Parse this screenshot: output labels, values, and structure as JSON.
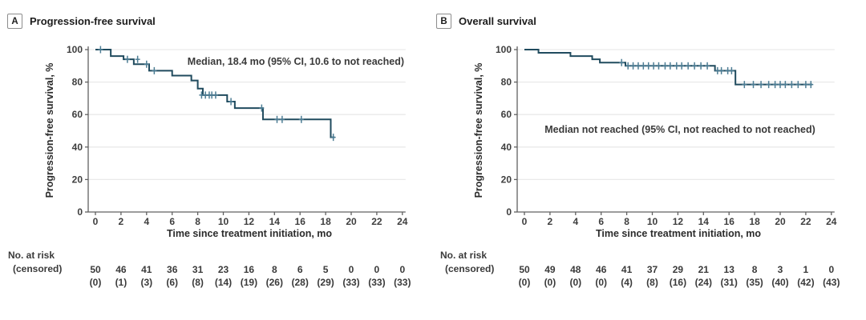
{
  "figure": {
    "panels": [
      {
        "label": "A",
        "title": "Progression-free survival",
        "median_annotation": "Median, 18.4 mo (95% CI, 10.6 to not reached)",
        "x_label": "Time since treatment initiation, mo",
        "y_label": "Progression-free survival, %",
        "risk_header_line1": "No. at risk",
        "risk_header_line2": "(censored)"
      },
      {
        "label": "B",
        "title": "Overall survival",
        "median_annotation": "Median not reached (95% CI, not reached to not reached)",
        "x_label": "Time since treatment initiation, mo",
        "y_label": "Progression-free survival, %",
        "risk_header_line1": "No. at risk",
        "risk_header_line2": "(censored)"
      }
    ]
  },
  "colors": {
    "curve": "#204b5e",
    "censor_mark": "#4d7d94",
    "gridline": "#e9e9e9",
    "axis": "#606060",
    "tick_text": "#3e3e3e",
    "risk_text": "#3a3a3a",
    "title_text": "#1c1c1c"
  },
  "chart_data": [
    {
      "type": "line",
      "subtype": "kaplan-meier-step",
      "panel": "A",
      "title": "Progression-free survival",
      "xlabel": "Time since treatment initiation, mo",
      "ylabel": "Progression-free survival, %",
      "xlim": [
        0,
        24
      ],
      "ylim": [
        0,
        100
      ],
      "xticks": [
        0,
        2,
        4,
        6,
        8,
        10,
        12,
        14,
        16,
        18,
        20,
        22,
        24
      ],
      "yticks": [
        0,
        20,
        40,
        60,
        80,
        100
      ],
      "grid": true,
      "annotation": "Median, 18.4 mo (95% CI, 10.6 to not reached)",
      "median_months": 18.4,
      "median_ci": "10.6 to not reached",
      "steps": [
        [
          0,
          100
        ],
        [
          1.2,
          96
        ],
        [
          2.2,
          94
        ],
        [
          3.0,
          91
        ],
        [
          4.2,
          87
        ],
        [
          6.0,
          84
        ],
        [
          7.5,
          81
        ],
        [
          8.0,
          76
        ],
        [
          8.4,
          72
        ],
        [
          10.3,
          68
        ],
        [
          10.9,
          64
        ],
        [
          13.1,
          57
        ],
        [
          18.4,
          46
        ]
      ],
      "curve_end": 18.7,
      "censor_marks": [
        [
          0.4,
          100
        ],
        [
          2.5,
          94
        ],
        [
          3.3,
          94
        ],
        [
          4.0,
          91
        ],
        [
          4.6,
          87
        ],
        [
          8.3,
          72
        ],
        [
          8.6,
          72
        ],
        [
          8.9,
          72
        ],
        [
          9.1,
          72
        ],
        [
          9.4,
          72
        ],
        [
          10.6,
          68
        ],
        [
          13.0,
          64
        ],
        [
          14.2,
          57
        ],
        [
          14.6,
          57
        ],
        [
          16.1,
          57
        ],
        [
          18.6,
          46
        ]
      ],
      "at_risk": [
        50,
        46,
        41,
        36,
        31,
        23,
        16,
        8,
        6,
        5,
        0,
        0,
        0
      ],
      "censored": [
        "(0)",
        "(1)",
        "(3)",
        "(6)",
        "(8)",
        "(14)",
        "(19)",
        "(26)",
        "(28)",
        "(29)",
        "(33)",
        "(33)",
        "(33)"
      ]
    },
    {
      "type": "line",
      "subtype": "kaplan-meier-step",
      "panel": "B",
      "title": "Overall survival",
      "xlabel": "Time since treatment initiation, mo",
      "ylabel": "Progression-free survival, %",
      "xlim": [
        0,
        24
      ],
      "ylim": [
        0,
        100
      ],
      "xticks": [
        0,
        2,
        4,
        6,
        8,
        10,
        12,
        14,
        16,
        18,
        20,
        22,
        24
      ],
      "yticks": [
        0,
        20,
        40,
        60,
        80,
        100
      ],
      "grid": true,
      "annotation": "Median not reached (95% CI, not reached to not reached)",
      "median_months": null,
      "median_ci": "not reached to not reached",
      "steps": [
        [
          0,
          100
        ],
        [
          1.1,
          98
        ],
        [
          3.6,
          96
        ],
        [
          5.3,
          94
        ],
        [
          5.9,
          92
        ],
        [
          7.9,
          90
        ],
        [
          14.9,
          87
        ],
        [
          16.5,
          78.5
        ]
      ],
      "curve_end": 22.5,
      "censor_marks": [
        [
          7.6,
          92
        ],
        [
          8.1,
          90
        ],
        [
          8.5,
          90
        ],
        [
          8.9,
          90
        ],
        [
          9.3,
          90
        ],
        [
          9.7,
          90
        ],
        [
          10.1,
          90
        ],
        [
          10.5,
          90
        ],
        [
          11.0,
          90
        ],
        [
          11.4,
          90
        ],
        [
          11.9,
          90
        ],
        [
          12.3,
          90
        ],
        [
          12.8,
          90
        ],
        [
          13.3,
          90
        ],
        [
          13.8,
          90
        ],
        [
          14.3,
          90
        ],
        [
          15.1,
          87
        ],
        [
          15.4,
          87
        ],
        [
          15.9,
          87
        ],
        [
          16.2,
          87
        ],
        [
          17.2,
          78.5
        ],
        [
          17.9,
          78.5
        ],
        [
          18.5,
          78.5
        ],
        [
          19.1,
          78.5
        ],
        [
          19.6,
          78.5
        ],
        [
          20.0,
          78.5
        ],
        [
          20.4,
          78.5
        ],
        [
          20.9,
          78.5
        ],
        [
          21.4,
          78.5
        ],
        [
          22.0,
          78.5
        ],
        [
          22.4,
          78.5
        ]
      ],
      "at_risk": [
        50,
        49,
        48,
        46,
        41,
        37,
        29,
        21,
        13,
        8,
        3,
        1,
        0
      ],
      "censored": [
        "(0)",
        "(0)",
        "(0)",
        "(0)",
        "(4)",
        "(8)",
        "(16)",
        "(24)",
        "(31)",
        "(35)",
        "(40)",
        "(42)",
        "(43)"
      ]
    }
  ]
}
